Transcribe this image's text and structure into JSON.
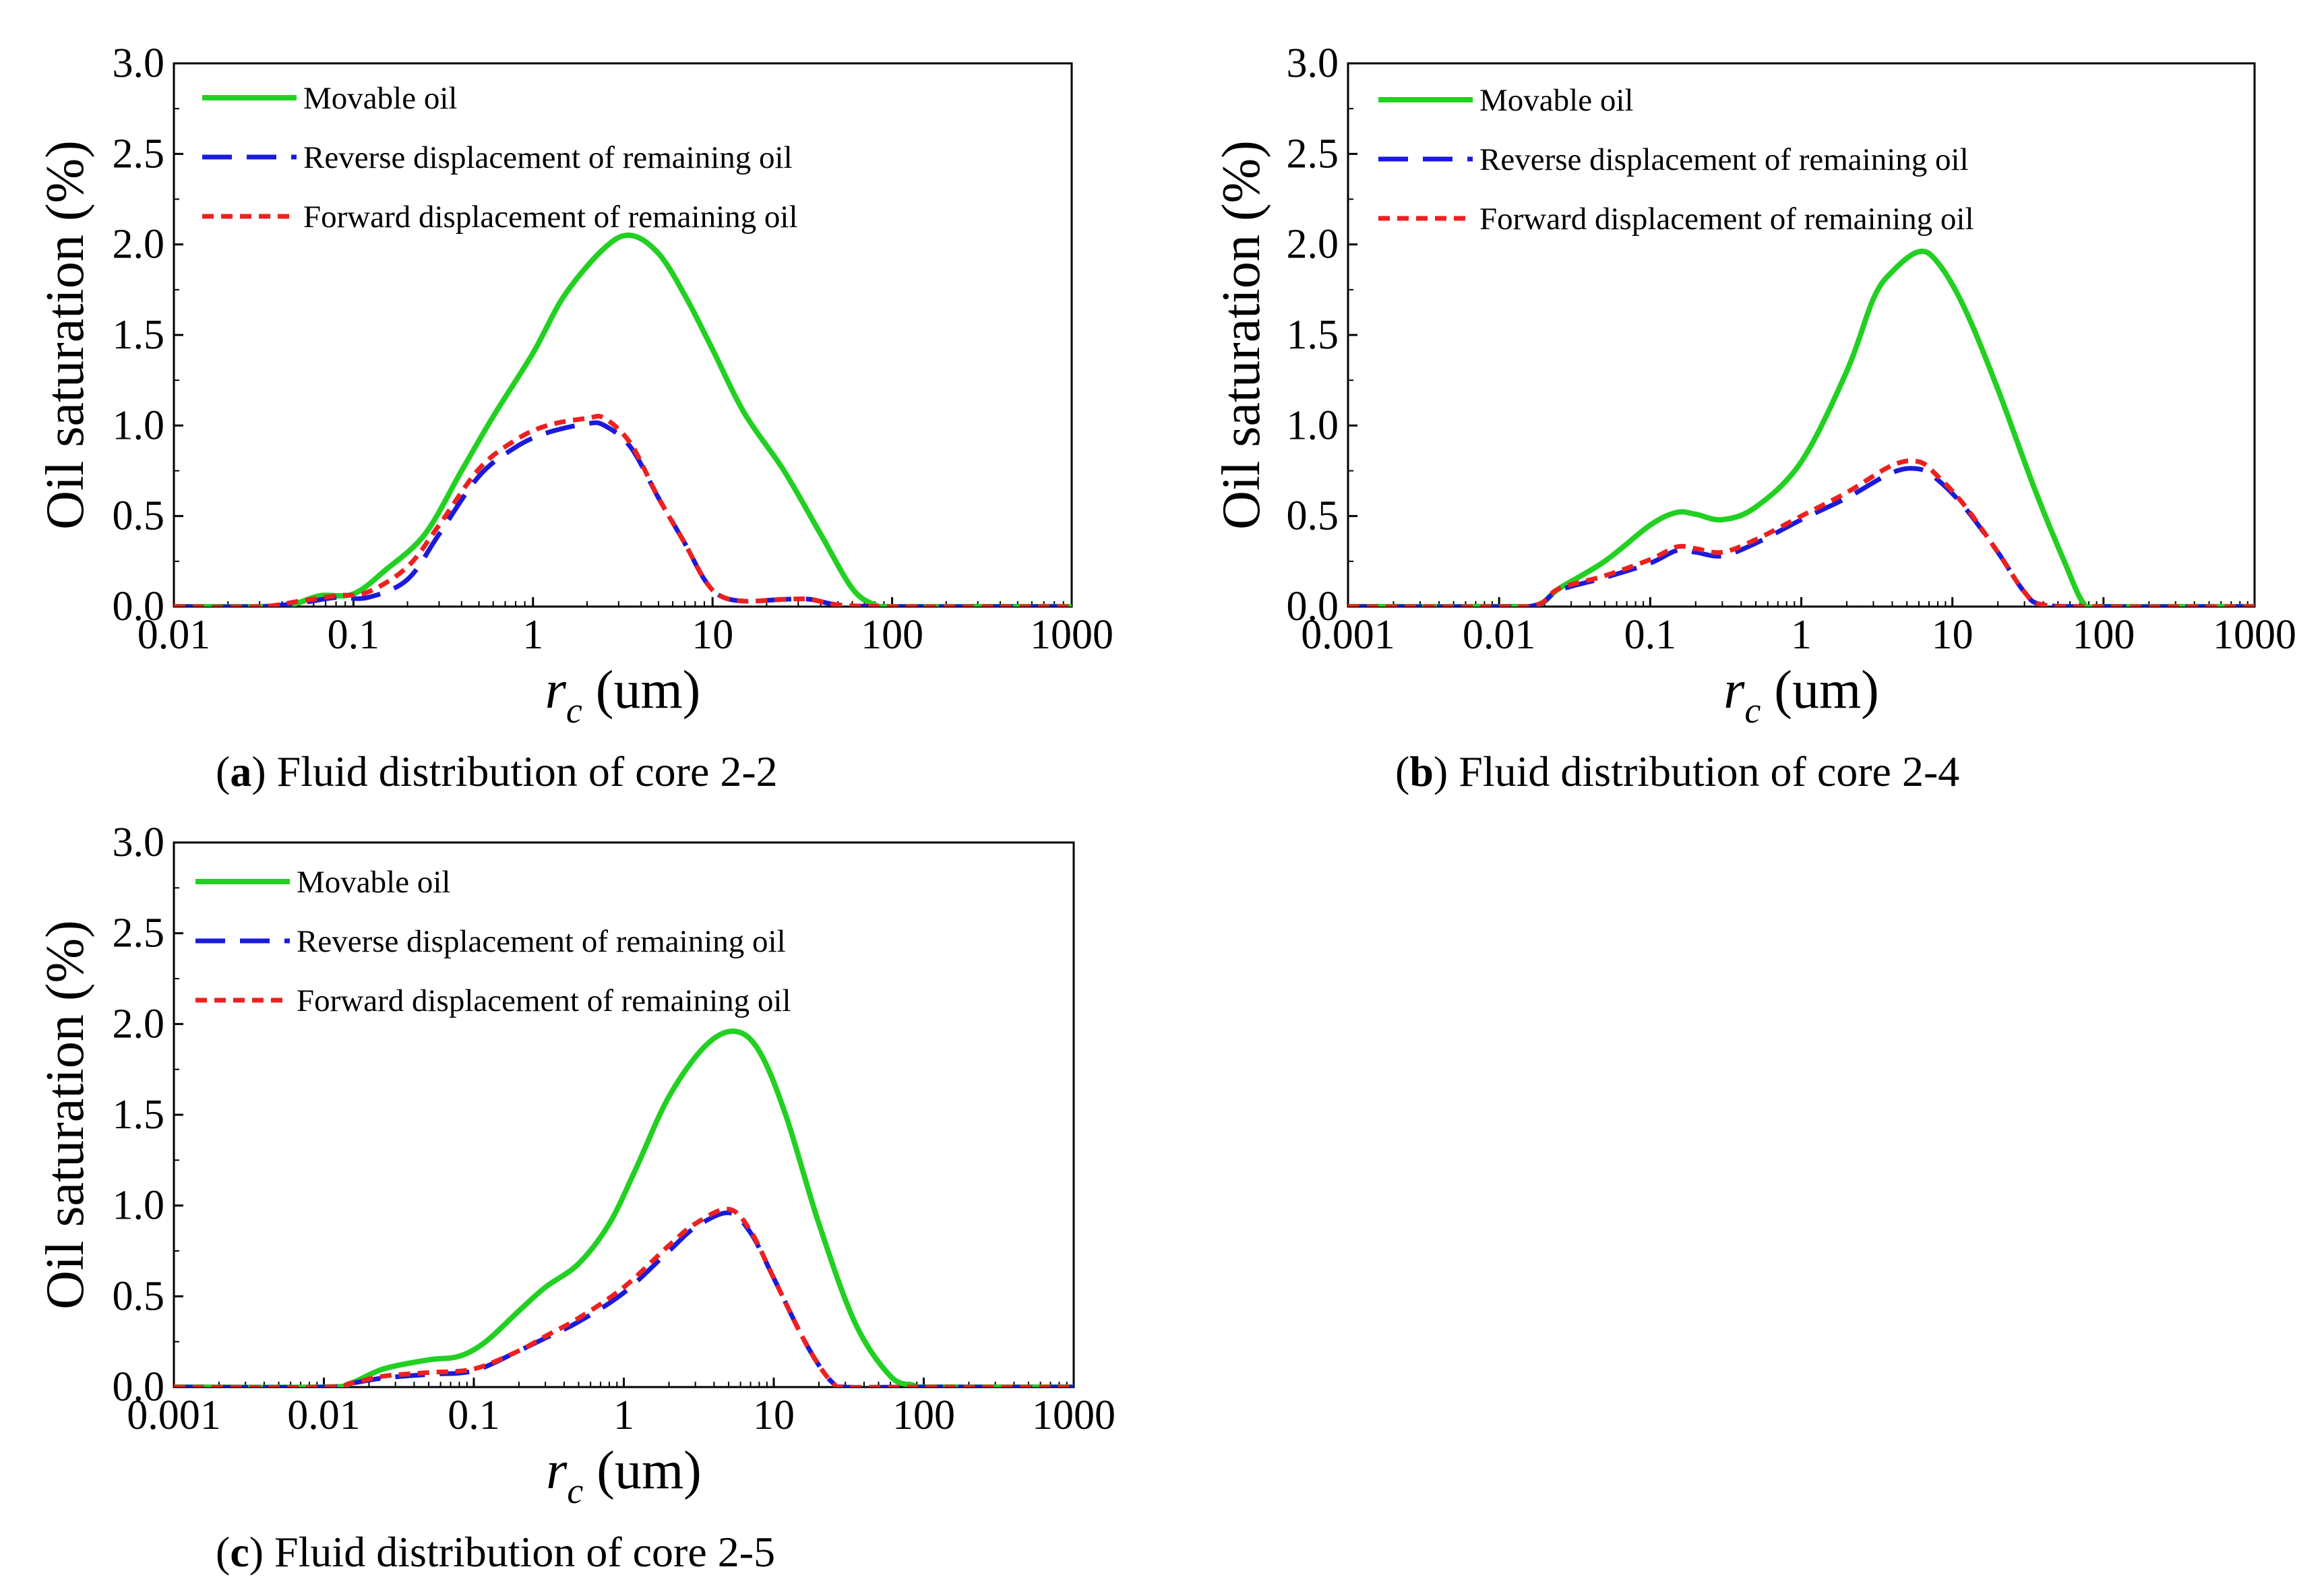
{
  "figure": {
    "panels": [
      {
        "caption_letter": "a",
        "caption_rest": ") Fluid distribution of core 2-2"
      },
      {
        "caption_letter": "b",
        "caption_rest": ") Fluid distribution of core 2-4"
      },
      {
        "caption_letter": "c",
        "caption_rest": ") Fluid distribution of core 2-5"
      }
    ]
  },
  "colors": {
    "movable": "#22d022",
    "reverse": "#1a1adc",
    "forward": "#ee2020"
  },
  "chart_data": [
    {
      "type": "line",
      "xscale": "log",
      "xlim": [
        0.01,
        1000
      ],
      "ylim": [
        0,
        3.0
      ],
      "xticks": [
        0.01,
        0.1,
        1,
        10,
        100,
        1000
      ],
      "xtick_labels": [
        "0.01",
        "0.1",
        "1",
        "10",
        "100",
        "1000"
      ],
      "yticks": [
        0,
        0.5,
        1.0,
        1.5,
        2.0,
        2.5,
        3.0
      ],
      "ytick_labels": [
        "0.0",
        "0.5",
        "1.0",
        "1.5",
        "2.0",
        "2.5",
        "3.0"
      ],
      "ylabel": "Oil saturation (%)",
      "xlabel_var": "r",
      "xlabel_sub": "c",
      "xlabel_unit": " (um)",
      "title": "(a) Fluid distribution of core 2-2",
      "legend_position": "top-left",
      "series": [
        {
          "name": "Movable oil",
          "style": "solid",
          "color_key": "movable",
          "x": [
            0.01,
            0.03,
            0.045,
            0.065,
            0.1,
            0.15,
            0.25,
            0.4,
            0.6,
            1,
            1.5,
            2.5,
            3.5,
            5,
            7,
            10,
            15,
            25,
            40,
            60,
            80,
            100,
            300,
            1000
          ],
          "y": [
            0,
            0,
            0.01,
            0.06,
            0.07,
            0.2,
            0.4,
            0.75,
            1.05,
            1.4,
            1.72,
            1.98,
            2.05,
            1.95,
            1.72,
            1.42,
            1.07,
            0.75,
            0.4,
            0.1,
            0.01,
            0,
            0,
            0
          ]
        },
        {
          "name": "Reverse displacement of remaining oil",
          "style": "dashed",
          "color_key": "reverse",
          "x": [
            0.01,
            0.03,
            0.05,
            0.08,
            0.12,
            0.2,
            0.3,
            0.5,
            0.8,
            1.2,
            2,
            2.5,
            3.5,
            5,
            7,
            9,
            11,
            15,
            25,
            35,
            50,
            100,
            1000
          ],
          "y": [
            0,
            0,
            0.02,
            0.05,
            0.05,
            0.15,
            0.4,
            0.72,
            0.88,
            0.96,
            1.01,
            1.0,
            0.88,
            0.6,
            0.35,
            0.15,
            0.06,
            0.03,
            0.04,
            0.04,
            0.01,
            0,
            0
          ]
        },
        {
          "name": "Forward displacement of remaining oil",
          "style": "dotted",
          "color_key": "forward",
          "x": [
            0.01,
            0.03,
            0.05,
            0.08,
            0.12,
            0.2,
            0.3,
            0.5,
            0.8,
            1.2,
            2,
            2.5,
            3.5,
            5,
            7,
            9,
            11,
            15,
            25,
            35,
            50,
            100,
            1000
          ],
          "y": [
            0,
            0,
            0.03,
            0.06,
            0.08,
            0.22,
            0.45,
            0.76,
            0.92,
            1.0,
            1.04,
            1.04,
            0.9,
            0.6,
            0.35,
            0.15,
            0.06,
            0.03,
            0.04,
            0.04,
            0.01,
            0,
            0
          ]
        }
      ]
    },
    {
      "type": "line",
      "xscale": "log",
      "xlim": [
        0.001,
        1000
      ],
      "ylim": [
        0,
        3.0
      ],
      "xticks": [
        0.001,
        0.01,
        0.1,
        1,
        10,
        100,
        1000
      ],
      "xtick_labels": [
        "0.001",
        "0.01",
        "0.1",
        "1",
        "10",
        "100",
        "1000"
      ],
      "yticks": [
        0,
        0.5,
        1.0,
        1.5,
        2.0,
        2.5,
        3.0
      ],
      "ytick_labels": [
        "0.0",
        "0.5",
        "1.0",
        "1.5",
        "2.0",
        "2.5",
        "3.0"
      ],
      "ylabel": "Oil saturation (%)",
      "xlabel_var": "r",
      "xlabel_sub": "c",
      "xlabel_unit": " (um)",
      "title": "(b) Fluid distribution of core 2-4",
      "legend_position": "top-left",
      "series": [
        {
          "name": "Movable oil",
          "style": "solid",
          "color_key": "movable",
          "x": [
            0.001,
            0.01,
            0.018,
            0.025,
            0.05,
            0.1,
            0.15,
            0.2,
            0.3,
            0.5,
            1,
            2,
            3,
            4,
            6,
            8,
            12,
            20,
            35,
            55,
            75,
            100,
            1000
          ],
          "y": [
            0,
            0,
            0.01,
            0.1,
            0.25,
            0.45,
            0.52,
            0.51,
            0.48,
            0.55,
            0.8,
            1.3,
            1.7,
            1.85,
            1.96,
            1.9,
            1.65,
            1.2,
            0.65,
            0.25,
            0.01,
            0,
            0
          ]
        },
        {
          "name": "Reverse displacement of remaining oil",
          "style": "dashed",
          "color_key": "reverse",
          "x": [
            0.001,
            0.01,
            0.018,
            0.025,
            0.05,
            0.1,
            0.15,
            0.2,
            0.3,
            0.5,
            1,
            2,
            4,
            6,
            8,
            12,
            20,
            30,
            40,
            100,
            1000
          ],
          "y": [
            0,
            0,
            0.01,
            0.09,
            0.16,
            0.24,
            0.31,
            0.3,
            0.28,
            0.35,
            0.48,
            0.6,
            0.74,
            0.76,
            0.7,
            0.55,
            0.3,
            0.08,
            0.01,
            0,
            0
          ]
        },
        {
          "name": "Forward displacement of remaining oil",
          "style": "dotted",
          "color_key": "forward",
          "x": [
            0.001,
            0.01,
            0.018,
            0.025,
            0.05,
            0.1,
            0.15,
            0.2,
            0.3,
            0.5,
            1,
            2,
            4,
            6,
            8,
            12,
            20,
            30,
            40,
            100,
            1000
          ],
          "y": [
            0,
            0,
            0.01,
            0.1,
            0.17,
            0.26,
            0.33,
            0.32,
            0.3,
            0.37,
            0.5,
            0.63,
            0.78,
            0.8,
            0.72,
            0.56,
            0.3,
            0.08,
            0.01,
            0,
            0
          ]
        }
      ]
    },
    {
      "type": "line",
      "xscale": "log",
      "xlim": [
        0.001,
        1000
      ],
      "ylim": [
        0,
        3.0
      ],
      "xticks": [
        0.001,
        0.01,
        0.1,
        1,
        10,
        100,
        1000
      ],
      "xtick_labels": [
        "0.001",
        "0.01",
        "0.1",
        "1",
        "10",
        "100",
        "1000"
      ],
      "yticks": [
        0,
        0.5,
        1.0,
        1.5,
        2.0,
        2.5,
        3.0
      ],
      "ytick_labels": [
        "0.0",
        "0.5",
        "1.0",
        "1.5",
        "2.0",
        "2.5",
        "3.0"
      ],
      "ylabel": "Oil saturation (%)",
      "xlabel_var": "r",
      "xlabel_sub": "c",
      "xlabel_unit": " (um)",
      "title": "(c) Fluid distribution of core 2-5",
      "legend_position": "top-left",
      "series": [
        {
          "name": "Movable oil",
          "style": "solid",
          "color_key": "movable",
          "x": [
            0.001,
            0.01,
            0.015,
            0.025,
            0.05,
            0.08,
            0.12,
            0.2,
            0.3,
            0.5,
            0.8,
            1.2,
            2,
            3.5,
            5.5,
            8,
            12,
            20,
            35,
            60,
            85,
            100,
            1000
          ],
          "y": [
            0,
            0,
            0.02,
            0.1,
            0.15,
            0.17,
            0.25,
            0.42,
            0.55,
            0.68,
            0.9,
            1.2,
            1.6,
            1.88,
            1.96,
            1.85,
            1.5,
            0.9,
            0.35,
            0.06,
            0.01,
            0,
            0
          ]
        },
        {
          "name": "Reverse displacement of remaining oil",
          "style": "dashed",
          "color_key": "reverse",
          "x": [
            0.001,
            0.01,
            0.015,
            0.025,
            0.05,
            0.1,
            0.2,
            0.3,
            0.5,
            1,
            2,
            3,
            5,
            7,
            10,
            15,
            20,
            25,
            30,
            100,
            1000
          ],
          "y": [
            0,
            0,
            0.02,
            0.05,
            0.07,
            0.09,
            0.2,
            0.27,
            0.36,
            0.52,
            0.75,
            0.88,
            0.96,
            0.85,
            0.6,
            0.3,
            0.12,
            0.02,
            0,
            0,
            0
          ]
        },
        {
          "name": "Forward displacement of remaining oil",
          "style": "dotted",
          "color_key": "forward",
          "x": [
            0.001,
            0.01,
            0.015,
            0.025,
            0.05,
            0.1,
            0.2,
            0.3,
            0.5,
            1,
            2,
            3,
            5,
            7,
            10,
            15,
            20,
            25,
            30,
            100,
            1000
          ],
          "y": [
            0,
            0,
            0.02,
            0.06,
            0.08,
            0.1,
            0.2,
            0.28,
            0.38,
            0.55,
            0.78,
            0.9,
            0.98,
            0.86,
            0.6,
            0.3,
            0.12,
            0.02,
            0,
            0,
            0
          ]
        }
      ]
    }
  ]
}
